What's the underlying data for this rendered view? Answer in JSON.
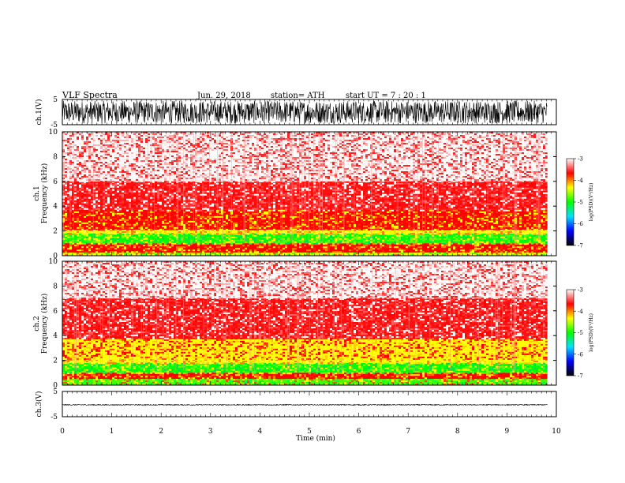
{
  "header": {
    "title": "VLF  Spectra",
    "date": "Jun. 29, 2018",
    "station": "station= ATH",
    "start_ut": "start  UT  =    7  : 20 : 1"
  },
  "chart_data": [
    {
      "type": "line",
      "name": "ch1-waveform",
      "ylabel": "ch.1(V)",
      "ylim": [
        -5,
        5
      ],
      "y_ticks": [
        "5",
        "-5"
      ],
      "x_range_min": [
        0,
        9.82
      ],
      "amplitude_v": [
        -4.5,
        4.5
      ]
    },
    {
      "type": "heatmap",
      "name": "ch1-spectrogram",
      "ylabel_channel": "ch.1",
      "ylabel": "Frequency  (kHz)",
      "ylim": [
        0,
        10
      ],
      "y_ticks": [
        "0",
        "2",
        "4",
        "6",
        "8",
        "10"
      ],
      "x_range_min": [
        0,
        9.82
      ],
      "bands": [
        {
          "f_khz": [
            0.0,
            0.25
          ],
          "level": "yellow-green"
        },
        {
          "f_khz": [
            0.25,
            1.0
          ],
          "level": "red-yellow"
        },
        {
          "f_khz": [
            1.0,
            1.8
          ],
          "level": "green"
        },
        {
          "f_khz": [
            1.8,
            2.1
          ],
          "level": "yellow"
        },
        {
          "f_khz": [
            2.1,
            3.7
          ],
          "level": "red-yellow"
        },
        {
          "f_khz": [
            3.7,
            6.0
          ],
          "level": "red"
        },
        {
          "f_khz": [
            6.0,
            10.0
          ],
          "level": "white-red"
        }
      ]
    },
    {
      "type": "heatmap",
      "name": "ch2-spectrogram",
      "ylabel_channel": "ch.2",
      "ylabel": "Frequency  (kHz)",
      "ylim": [
        0,
        10
      ],
      "y_ticks": [
        "0",
        "2",
        "4",
        "6",
        "8",
        "10"
      ],
      "x_range_min": [
        0,
        9.82
      ],
      "bands": [
        {
          "f_khz": [
            0.0,
            0.5
          ],
          "level": "green-yellow"
        },
        {
          "f_khz": [
            0.5,
            1.0
          ],
          "level": "red-yellow"
        },
        {
          "f_khz": [
            1.0,
            1.8
          ],
          "level": "green"
        },
        {
          "f_khz": [
            1.8,
            2.1
          ],
          "level": "yellow"
        },
        {
          "f_khz": [
            2.1,
            3.7
          ],
          "level": "yellow-red"
        },
        {
          "f_khz": [
            3.7,
            7.0
          ],
          "level": "red"
        },
        {
          "f_khz": [
            7.0,
            10.0
          ],
          "level": "white-red"
        }
      ]
    },
    {
      "type": "line",
      "name": "ch3-waveform",
      "ylabel": "ch.3(V)",
      "ylim": [
        -5,
        5
      ],
      "y_ticks": [
        "5",
        "-5"
      ],
      "x_range_min": [
        0,
        9.82
      ],
      "amplitude_v": [
        -0.5,
        -0.1
      ]
    }
  ],
  "x_axis": {
    "xlabel": "Time  (min)",
    "xlim": [
      0,
      10
    ],
    "ticks": [
      "0",
      "1",
      "2",
      "3",
      "4",
      "5",
      "6",
      "7",
      "8",
      "9",
      "10"
    ]
  },
  "colorbar": {
    "label": "log(PSD)(V²/Hz)",
    "range": [
      -7,
      -3
    ],
    "ticks": [
      "-3",
      "-4",
      "-5",
      "-6",
      "-7"
    ],
    "colors": [
      "#000000",
      "#0000ff",
      "#00e0ff",
      "#00ff00",
      "#ffff00",
      "#ff0000",
      "#ffffff"
    ]
  }
}
